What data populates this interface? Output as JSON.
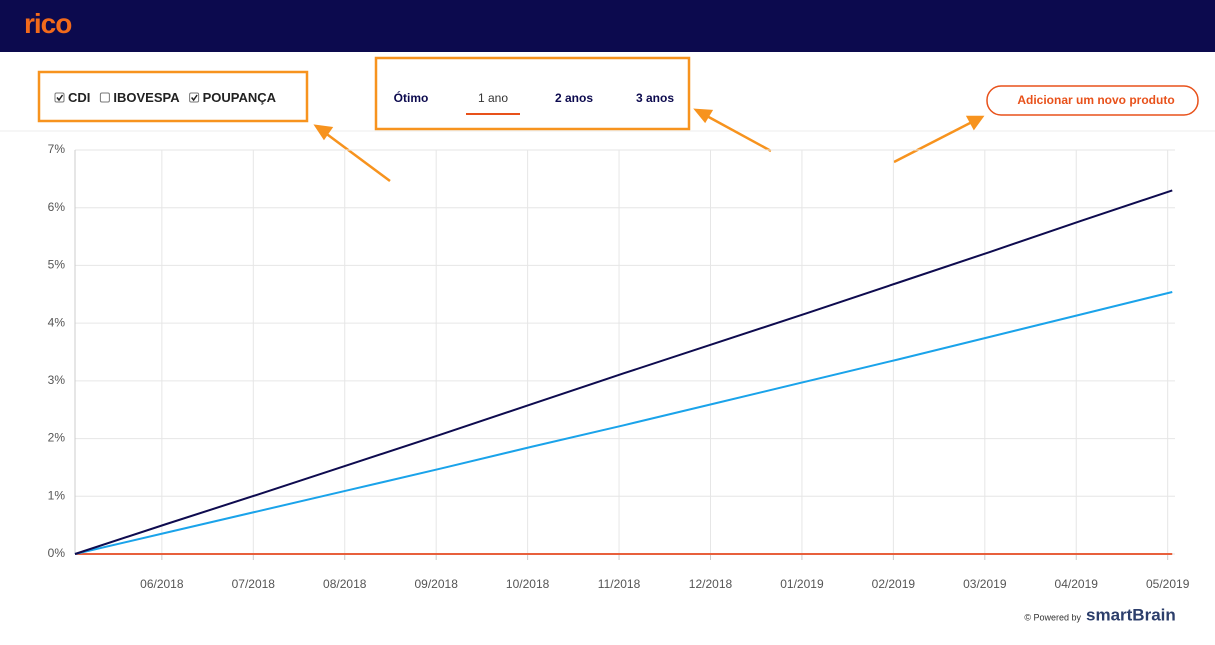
{
  "header": {
    "logo": "rico"
  },
  "filters": [
    {
      "label": "CDI",
      "checked": true
    },
    {
      "label": "IBOVESPA",
      "checked": false
    },
    {
      "label": "POUPANÇA",
      "checked": true
    }
  ],
  "periods": {
    "options": [
      "Ótimo",
      "1 ano",
      "2 anos",
      "3 anos"
    ],
    "selected": 1
  },
  "button": "Adicionar um novo produto",
  "footer": {
    "powered_by": "© Powered by",
    "brand": "smartBrain"
  },
  "chart_data": {
    "type": "line",
    "x": [
      0,
      1,
      2,
      3,
      4,
      5,
      6,
      7,
      8,
      9,
      10,
      11,
      12
    ],
    "xlim": [
      0,
      12.03
    ],
    "xticks": [
      {
        "value": 0.95,
        "label": "06/2018"
      },
      {
        "value": 1.95,
        "label": "07/2018"
      },
      {
        "value": 2.95,
        "label": "08/2018"
      },
      {
        "value": 3.95,
        "label": "09/2018"
      },
      {
        "value": 4.95,
        "label": "10/2018"
      },
      {
        "value": 5.95,
        "label": "11/2018"
      },
      {
        "value": 6.95,
        "label": "12/2018"
      },
      {
        "value": 7.95,
        "label": "01/2019"
      },
      {
        "value": 8.95,
        "label": "02/2019"
      },
      {
        "value": 9.95,
        "label": "03/2019"
      },
      {
        "value": 10.95,
        "label": "04/2019"
      },
      {
        "value": 11.95,
        "label": "05/2019"
      }
    ],
    "ylim": [
      0,
      7
    ],
    "yticks": [
      {
        "value": 0,
        "label": "0%"
      },
      {
        "value": 1,
        "label": "1%"
      },
      {
        "value": 2,
        "label": "2%"
      },
      {
        "value": 3,
        "label": "3%"
      },
      {
        "value": 4,
        "label": "4%"
      },
      {
        "value": 5,
        "label": "5%"
      },
      {
        "value": 6,
        "label": "6%"
      },
      {
        "value": 7,
        "label": "7%"
      }
    ],
    "grid": true,
    "series": [
      {
        "name": "CDI",
        "color": "#0e0b4f",
        "values": [
          0,
          0.52,
          1.03,
          1.55,
          2.07,
          2.6,
          3.13,
          3.65,
          4.17,
          4.7,
          5.23,
          5.77,
          6.3
        ]
      },
      {
        "name": "POUPANÇA",
        "color": "#1aa3ea",
        "values": [
          0,
          0.37,
          0.74,
          1.11,
          1.48,
          1.86,
          2.23,
          2.61,
          2.99,
          3.37,
          3.76,
          4.15,
          4.54
        ]
      },
      {
        "name": "IBOVESPA",
        "color": "#e8603c",
        "values": [
          0,
          0,
          0,
          0,
          0,
          0,
          0,
          0,
          0,
          0,
          0,
          0,
          0
        ]
      }
    ]
  }
}
